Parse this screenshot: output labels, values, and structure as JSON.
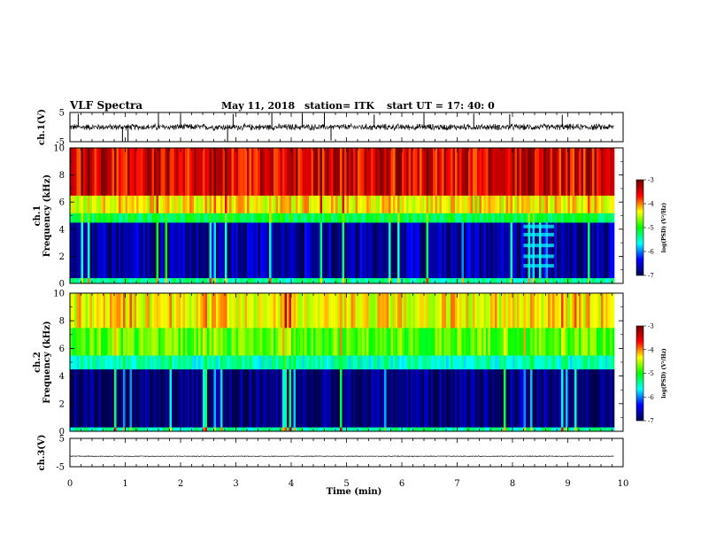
{
  "header": {
    "title": "VLF Spectra",
    "date": "May 11, 2018",
    "station": "station= ITK",
    "start": "start  UT  =   17: 40: 0"
  },
  "colorbar": {
    "label": "log(PSD) (V²/Hz)",
    "min": -7,
    "max": -3,
    "ticks": [
      "-3",
      "-4",
      "-5",
      "-6",
      "-7"
    ],
    "colors": [
      "#6b0000",
      "#ff0000",
      "#ffff00",
      "#00ff00",
      "#00ffff",
      "#0000ff",
      "#00004f"
    ]
  },
  "chart_data": [
    {
      "type": "line",
      "name": "ch1-waveform",
      "ylabel": "ch.1(V)",
      "ylim": [
        -5,
        5
      ],
      "yticks": [
        "5",
        "-5"
      ],
      "xlim": [
        0,
        10
      ],
      "baseline": 0,
      "noise_amplitude": 1.3,
      "spikes": [
        {
          "t": 0.15,
          "v": 4.5
        },
        {
          "t": 0.95,
          "v": -5
        },
        {
          "t": 1.05,
          "v": -5
        },
        {
          "t": 1.6,
          "v": 4.6
        },
        {
          "t": 2.0,
          "v": 4.2
        },
        {
          "t": 2.85,
          "v": -5
        },
        {
          "t": 2.95,
          "v": 4.5
        },
        {
          "t": 3.65,
          "v": 4.8
        },
        {
          "t": 4.2,
          "v": 4.4
        },
        {
          "t": 4.6,
          "v": 4.7
        },
        {
          "t": 4.72,
          "v": -4.6
        },
        {
          "t": 5.5,
          "v": 4.3
        },
        {
          "t": 6.4,
          "v": 4.5
        },
        {
          "t": 7.3,
          "v": 4.6
        },
        {
          "t": 7.95,
          "v": 4.4
        },
        {
          "t": 8.9,
          "v": 4.2
        }
      ]
    },
    {
      "type": "heatmap",
      "name": "ch1-spectrogram",
      "ylabel": "ch.1\nFrequency (kHz)",
      "ylim": [
        0,
        10
      ],
      "yticks": [
        "0",
        "2",
        "4",
        "6",
        "8",
        "10"
      ],
      "xlim": [
        0,
        10
      ],
      "data_end_min": 9.83,
      "bands": [
        {
          "f_from": 0,
          "f_to": 0.4,
          "log_psd": -5.3
        },
        {
          "f_from": 0.4,
          "f_to": 4.5,
          "log_psd": -6.7
        },
        {
          "f_from": 4.5,
          "f_to": 5.2,
          "log_psd": -5.0
        },
        {
          "f_from": 5.2,
          "f_to": 6.5,
          "log_psd": -4.1
        },
        {
          "f_from": 6.5,
          "f_to": 10,
          "log_psd": -3.4
        }
      ],
      "striations": [
        {
          "t_from": 8.2,
          "t_to": 8.75,
          "f": [
            1.3,
            2.0,
            2.8,
            3.6,
            4.2
          ],
          "log_psd": -5.6
        }
      ]
    },
    {
      "type": "heatmap",
      "name": "ch2-spectrogram",
      "ylabel": "ch.2\nFrequency (kHz)",
      "ylim": [
        0,
        10
      ],
      "yticks": [
        "0",
        "2",
        "4",
        "6",
        "8",
        "10"
      ],
      "xlim": [
        0,
        10
      ],
      "data_end_min": 9.83,
      "bands": [
        {
          "f_from": 0,
          "f_to": 0.3,
          "log_psd": -5.3
        },
        {
          "f_from": 0.3,
          "f_to": 4.5,
          "log_psd": -6.9
        },
        {
          "f_from": 4.5,
          "f_to": 5.5,
          "log_psd": -5.4
        },
        {
          "f_from": 5.5,
          "f_to": 7.5,
          "log_psd": -4.6
        },
        {
          "f_from": 7.5,
          "f_to": 10,
          "log_psd": -4.1
        }
      ],
      "striations": []
    },
    {
      "type": "line",
      "name": "ch3-waveform",
      "ylabel": "ch.3(V)",
      "ylim": [
        -5,
        5
      ],
      "yticks": [
        "5",
        "-5"
      ],
      "xlim": [
        0,
        10
      ],
      "baseline": -1.3,
      "noise_amplitude": 0.15,
      "spikes": []
    }
  ],
  "time_axis": {
    "label": "Time (min)",
    "ticks": [
      "0",
      "1",
      "2",
      "3",
      "4",
      "5",
      "6",
      "7",
      "8",
      "9",
      "10"
    ]
  }
}
